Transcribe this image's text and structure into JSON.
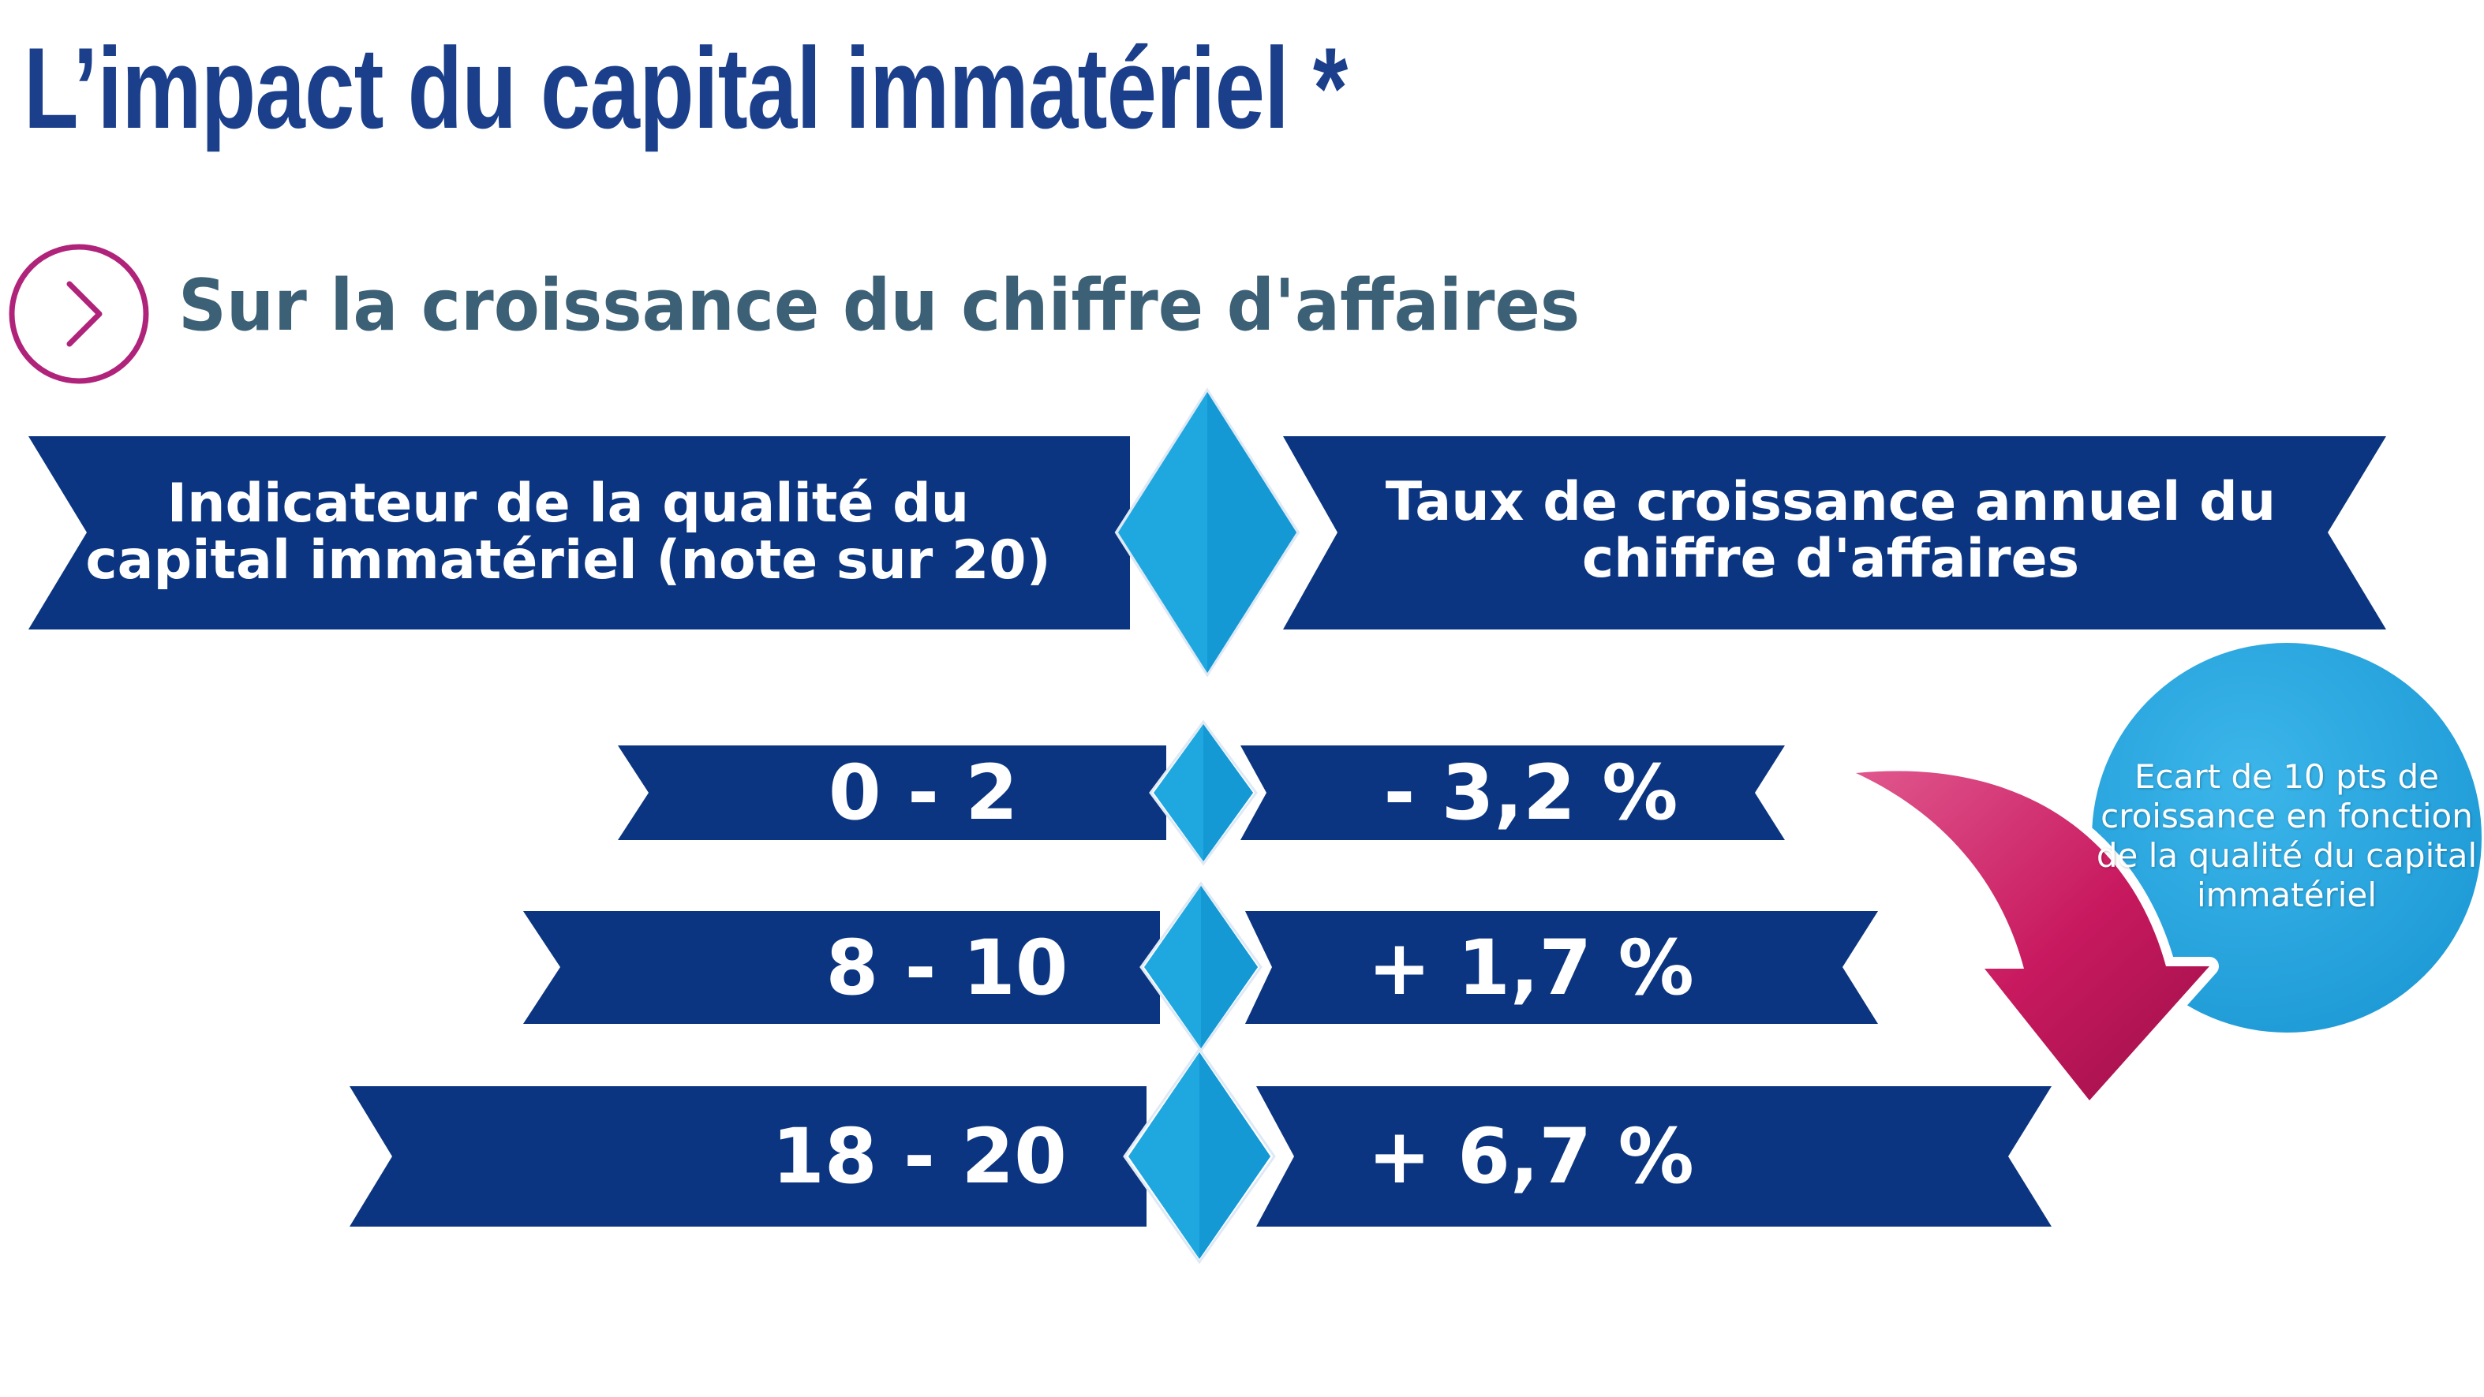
{
  "title": "L’impact du capital immatériel *",
  "subtitle": "Sur la croissance du chiffre d'affaires",
  "colors": {
    "title": "#1b3f8a",
    "subtitle": "#3c6075",
    "banner": "#0b3580",
    "diamond": "#1fa8e0",
    "bubble": "#2aa8df",
    "arrow": "#c8195f",
    "circle_icon": "#b0237a"
  },
  "header": {
    "left_line1": "Indicateur de la qualité du",
    "left_line2": "capital immatériel (note sur 20)",
    "right_line1": "Taux de croissance annuel du",
    "right_line2": "chiffre d'affaires"
  },
  "rows": [
    {
      "range": "0 - 2",
      "rate": "- 3,2 %"
    },
    {
      "range": "8 - 10",
      "rate": "+ 1,7 %"
    },
    {
      "range": "18 - 20",
      "rate": "+ 6,7 %"
    }
  ],
  "bubble": {
    "text": "Ecart de 10 pts de croissance en fonction de la qualité du capital immatériel"
  },
  "icons": {
    "subtitle_icon": "chevron-right-circle-icon",
    "arrow_icon": "curved-arrow-down-icon"
  }
}
